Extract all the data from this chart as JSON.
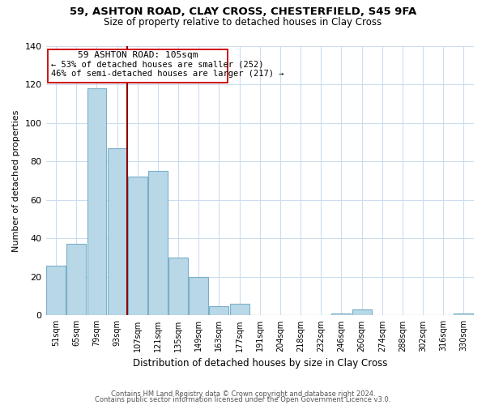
{
  "title": "59, ASHTON ROAD, CLAY CROSS, CHESTERFIELD, S45 9FA",
  "subtitle": "Size of property relative to detached houses in Clay Cross",
  "xlabel": "Distribution of detached houses by size in Clay Cross",
  "ylabel": "Number of detached properties",
  "bar_color": "#b8d8e8",
  "bar_edge_color": "#7aafc8",
  "categories": [
    "51sqm",
    "65sqm",
    "79sqm",
    "93sqm",
    "107sqm",
    "121sqm",
    "135sqm",
    "149sqm",
    "163sqm",
    "177sqm",
    "191sqm",
    "204sqm",
    "218sqm",
    "232sqm",
    "246sqm",
    "260sqm",
    "274sqm",
    "288sqm",
    "302sqm",
    "316sqm",
    "330sqm"
  ],
  "values": [
    26,
    37,
    118,
    87,
    72,
    75,
    30,
    20,
    5,
    6,
    0,
    0,
    0,
    0,
    1,
    3,
    0,
    0,
    0,
    0,
    1
  ],
  "ylim": [
    0,
    140
  ],
  "yticks": [
    0,
    20,
    40,
    60,
    80,
    100,
    120,
    140
  ],
  "vline_color": "#8b0000",
  "annotation_title": "59 ASHTON ROAD: 105sqm",
  "annotation_line1": "← 53% of detached houses are smaller (252)",
  "annotation_line2": "46% of semi-detached houses are larger (217) →",
  "footer1": "Contains HM Land Registry data © Crown copyright and database right 2024.",
  "footer2": "Contains public sector information licensed under the Open Government Licence v3.0.",
  "background_color": "#ffffff",
  "grid_color": "#ccddee"
}
